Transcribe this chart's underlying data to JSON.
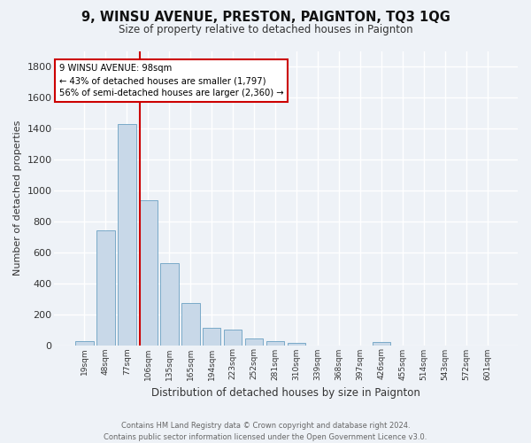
{
  "title": "9, WINSU AVENUE, PRESTON, PAIGNTON, TQ3 1QG",
  "subtitle": "Size of property relative to detached houses in Paignton",
  "xlabel": "Distribution of detached houses by size in Paignton",
  "ylabel": "Number of detached properties",
  "bin_labels": [
    "19sqm",
    "48sqm",
    "77sqm",
    "106sqm",
    "135sqm",
    "165sqm",
    "194sqm",
    "223sqm",
    "252sqm",
    "281sqm",
    "310sqm",
    "339sqm",
    "368sqm",
    "397sqm",
    "426sqm",
    "455sqm",
    "514sqm",
    "543sqm",
    "572sqm",
    "601sqm"
  ],
  "bar_values": [
    25,
    740,
    1430,
    935,
    530,
    270,
    110,
    100,
    45,
    25,
    15,
    0,
    0,
    0,
    20,
    0,
    0,
    0,
    0,
    0
  ],
  "bar_color": "#c8d8e8",
  "bar_edge_color": "#7aaac8",
  "vline_color": "#cc0000",
  "annotation_text": "9 WINSU AVENUE: 98sqm\n← 43% of detached houses are smaller (1,797)\n56% of semi-detached houses are larger (2,360) →",
  "annotation_box_color": "#ffffff",
  "annotation_box_edge": "#cc0000",
  "footer": "Contains HM Land Registry data © Crown copyright and database right 2024.\nContains public sector information licensed under the Open Government Licence v3.0.",
  "bg_color": "#eef2f7",
  "ylim": [
    0,
    1900
  ],
  "yticks": [
    0,
    200,
    400,
    600,
    800,
    1000,
    1200,
    1400,
    1600,
    1800
  ],
  "vline_pos": 2.6
}
